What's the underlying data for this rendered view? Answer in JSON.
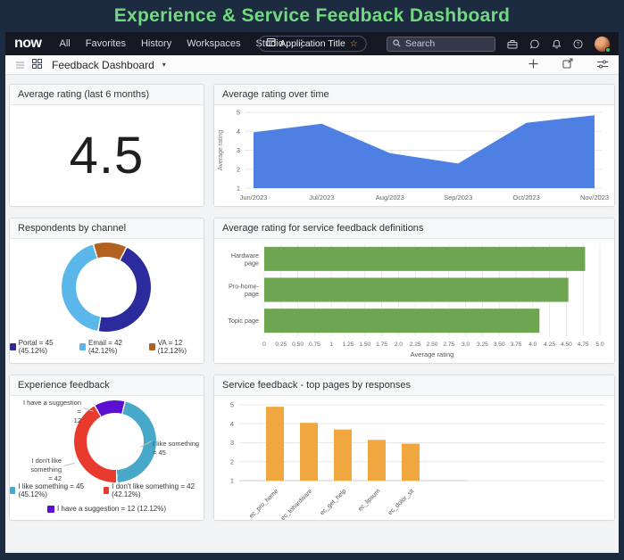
{
  "page": {
    "title": "Experience & Service Feedback Dashboard"
  },
  "nav": {
    "logo": "now",
    "items": [
      "All",
      "Favorites",
      "History",
      "Workspaces",
      "Studio"
    ],
    "app_pill": {
      "label": "Application Title"
    },
    "search_placeholder": "Search"
  },
  "toolbar": {
    "breadcrumb": "Feedback Dashboard"
  },
  "cards": {
    "avg_rating": {
      "title": "Average rating (last 6 months)",
      "value": "4.5"
    },
    "rating_over_time": {
      "title": "Average rating over time"
    },
    "respondents": {
      "title": "Respondents by channel"
    },
    "service_defs": {
      "title": "Average rating for service feedback definitions"
    },
    "experience": {
      "title": "Experience feedback"
    },
    "top_pages": {
      "title": "Service feedback - top pages by responses"
    }
  },
  "colors": {
    "banner_bg": "#1c2b3f",
    "banner_text": "#72d980",
    "area_fill": "#4d80e2",
    "green_bar": "#6da551",
    "orange_bar": "#f1a73f"
  },
  "chart_data": [
    {
      "type": "area",
      "title": "Average rating over time",
      "x": [
        "Jun/2023",
        "Jul/2023",
        "Aug/2023",
        "Sep/2023",
        "Oct/2023",
        "Nov/2023"
      ],
      "values": [
        3.95,
        4.4,
        2.85,
        2.3,
        4.45,
        4.85
      ],
      "ylabel": "Average rating",
      "ylim": [
        1,
        5
      ],
      "yticks": [
        1,
        2,
        3,
        4,
        5
      ],
      "baseline": 1,
      "grid": true,
      "legend_position": "none",
      "color": "#4d80e2"
    },
    {
      "type": "pie",
      "title": "Respondents by channel",
      "donut": true,
      "start_angle": 28,
      "slices": [
        {
          "label": "Portal = 45 (45.12%)",
          "value": 45.12,
          "color": "#2b2b9e"
        },
        {
          "label": "Email = 42 (42.12%)",
          "value": 42.12,
          "color": "#5bb7ea"
        },
        {
          "label": "VA = 12 (12.12%)",
          "value": 12.12,
          "color": "#b3611e"
        }
      ],
      "legend_position": "bottom"
    },
    {
      "type": "bar",
      "orientation": "horizontal",
      "title": "Average rating for service feedback definitions",
      "categories": [
        "Hardware page",
        "Pro-home-page",
        "Topic page"
      ],
      "category_lines": [
        [
          "Hardware",
          "page"
        ],
        [
          "Pro-home-",
          "page"
        ],
        [
          "Topic page"
        ]
      ],
      "values": [
        4.78,
        4.53,
        4.1
      ],
      "xlabel": "Average rating",
      "xlim": [
        0,
        5
      ],
      "xticks": [
        "0",
        "0.25",
        "0.50",
        "0.75",
        "1",
        "1.25",
        "1.50",
        "1.75",
        "2.0",
        "2.25",
        "2.50",
        "2.75",
        "3.0",
        "3.25",
        "3.50",
        "3.75",
        "4.0",
        "4.25",
        "4.50",
        "4.75",
        "5.0"
      ],
      "grid": true,
      "color": "#6da551"
    },
    {
      "type": "pie",
      "title": "Experience feedback",
      "donut": true,
      "start_angle": 15,
      "slices": [
        {
          "label": "I like something = 45 (45.12%)",
          "value": 45.12,
          "color": "#47a8c9"
        },
        {
          "label": "I don't like something = 42 (42.12%)",
          "value": 42.12,
          "color": "#e83b2d"
        },
        {
          "label": "I have a suggestion = 12 (12.12%)",
          "value": 12.12,
          "color": "#5a10ce"
        }
      ],
      "callouts": [
        "I have a suggestion =\n12",
        "I like something = 45",
        "I don't like something\n= 42"
      ],
      "legend_position": "bottom"
    },
    {
      "type": "bar",
      "orientation": "vertical",
      "title": "Service feedback - top pages by responses",
      "categories": [
        "ec_pro_home",
        "ec_tohardware",
        "ec_get_help",
        "ec_lipsum",
        "ec_dolor_sit"
      ],
      "values": [
        4.9,
        4.05,
        3.7,
        3.15,
        2.95
      ],
      "ylim": [
        1,
        5
      ],
      "yticks": [
        1,
        2,
        3,
        4,
        5
      ],
      "baseline": 1,
      "grid": true,
      "color": "#f1a73f"
    }
  ]
}
